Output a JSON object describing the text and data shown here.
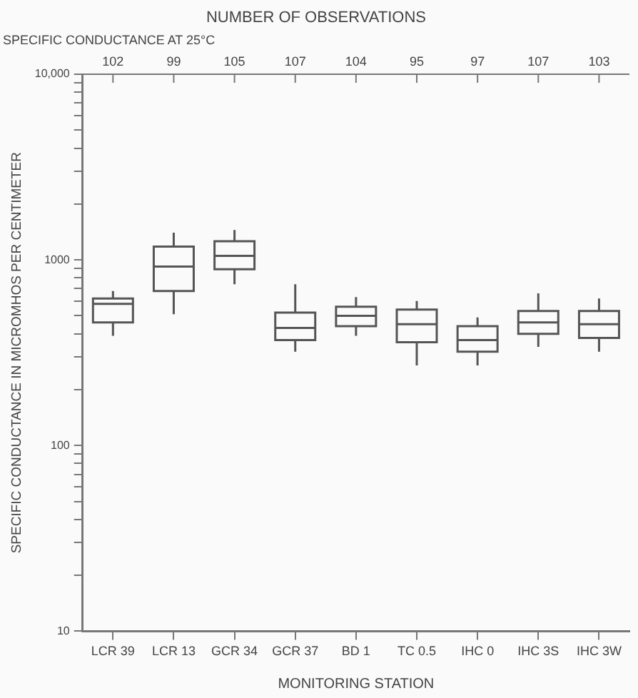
{
  "chart_data": {
    "type": "box",
    "title": "NUMBER OF OBSERVATIONS",
    "subtitle": "SPECIFIC CONDUCTANCE AT 25°C",
    "xlabel": "MONITORING STATION",
    "ylabel": "SPECIFIC CONDUCTANCE IN MICROMHOS PER CENTIMETER",
    "categories": [
      "LCR 39",
      "LCR 13",
      "GCR 34",
      "GCR 37",
      "BD 1",
      "TC 0.5",
      "IHC 0",
      "IHC 3S",
      "IHC 3W"
    ],
    "boxes": [
      {
        "low": 390,
        "q1": 460,
        "median": 580,
        "q3": 620,
        "high": 680
      },
      {
        "low": 510,
        "q1": 680,
        "median": 920,
        "q3": 1180,
        "high": 1400
      },
      {
        "low": 740,
        "q1": 890,
        "median": 1050,
        "q3": 1260,
        "high": 1450
      },
      {
        "low": 320,
        "q1": 370,
        "median": 430,
        "q3": 520,
        "high": 740
      },
      {
        "low": 390,
        "q1": 440,
        "median": 500,
        "q3": 560,
        "high": 630
      },
      {
        "low": 270,
        "q1": 360,
        "median": 450,
        "q3": 540,
        "high": 600
      },
      {
        "low": 270,
        "q1": 320,
        "median": 370,
        "q3": 440,
        "high": 490
      },
      {
        "low": 340,
        "q1": 400,
        "median": 460,
        "q3": 530,
        "high": 660
      },
      {
        "low": 320,
        "q1": 380,
        "median": 450,
        "q3": 530,
        "high": 620
      }
    ],
    "color": "#555555",
    "log": "y",
    "ylim": [
      10,
      10000
    ],
    "yticks": [
      10,
      {
        "value": 20,
        "label": null
      },
      {
        "value": 30,
        "label": null
      },
      {
        "value": 40,
        "label": null
      },
      {
        "value": 50,
        "label": null
      },
      {
        "value": 60,
        "label": null
      },
      {
        "value": 70,
        "label": null
      },
      {
        "value": 80,
        "label": null
      },
      {
        "value": 90,
        "label": null
      },
      100,
      {
        "value": 200,
        "label": null
      },
      {
        "value": 300,
        "label": null
      },
      {
        "value": 400,
        "label": null
      },
      {
        "value": 500,
        "label": null
      },
      {
        "value": 600,
        "label": null
      },
      {
        "value": 700,
        "label": null
      },
      {
        "value": 800,
        "label": null
      },
      {
        "value": 900,
        "label": null
      },
      1000,
      {
        "value": 2000,
        "label": null
      },
      {
        "value": 3000,
        "label": null
      },
      {
        "value": 4000,
        "label": null
      },
      {
        "value": 5000,
        "label": null
      },
      {
        "value": 6000,
        "label": null
      },
      {
        "value": 7000,
        "label": null
      },
      {
        "value": 8000,
        "label": null
      },
      {
        "value": 9000,
        "label": null
      },
      {
        "value": 10000,
        "label": "10,000"
      }
    ],
    "grid": false,
    "legend": false,
    "annotations": [
      {
        "text": "102",
        "x": "LCR 39"
      },
      {
        "text": "99",
        "x": "LCR 13"
      },
      {
        "text": "105",
        "x": "GCR 34"
      },
      {
        "text": "107",
        "x": "GCR 37"
      },
      {
        "text": "104",
        "x": "BD 1"
      },
      {
        "text": "95",
        "x": "TC 0.5"
      },
      {
        "text": "97",
        "x": "IHC 0"
      },
      {
        "text": "107",
        "x": "IHC 3S"
      },
      {
        "text": "103",
        "x": "IHC 3W"
      }
    ]
  }
}
